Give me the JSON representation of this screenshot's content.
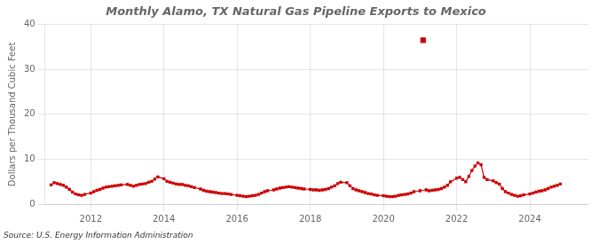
{
  "chart_data": {
    "type": "line",
    "title": "Monthly Alamo, TX Natural Gas Pipeline Exports to Mexico",
    "ylabel": "Dollars per Thousand Cubic Feet",
    "annotation": "Source: U.S. Energy Information Administration",
    "xlim": [
      2010.75,
      2025.6
    ],
    "xticks": [
      2012,
      2014,
      2016,
      2018,
      2020,
      2022,
      2024
    ],
    "ylim": [
      0,
      40
    ],
    "yticks": [
      0,
      10,
      20,
      30,
      40
    ],
    "grid": true,
    "legend": false,
    "series": [
      {
        "type": "line",
        "color": "#cc0000",
        "marker": "square",
        "x": [
          2010.917,
          2011.0,
          2011.083,
          2011.167,
          2011.25,
          2011.333,
          2011.417,
          2011.5,
          2011.583,
          2011.667,
          2011.75,
          2011.833,
          2012.0,
          2012.083,
          2012.167,
          2012.25,
          2012.333,
          2012.417,
          2012.5,
          2012.583,
          2012.667,
          2012.75,
          2012.833,
          2013.0,
          2013.083,
          2013.167,
          2013.25,
          2013.333,
          2013.417,
          2013.5,
          2013.583,
          2013.667,
          2013.75,
          2013.833,
          2014.0,
          2014.083,
          2014.167,
          2014.25,
          2014.333,
          2014.417,
          2014.5,
          2014.583,
          2014.667,
          2014.75,
          2014.833,
          2015.0,
          2015.083,
          2015.167,
          2015.25,
          2015.333,
          2015.417,
          2015.5,
          2015.583,
          2015.667,
          2015.75,
          2015.833,
          2016.0,
          2016.083,
          2016.167,
          2016.25,
          2016.333,
          2016.417,
          2016.5,
          2016.583,
          2016.667,
          2016.75,
          2016.833,
          2017.0,
          2017.083,
          2017.167,
          2017.25,
          2017.333,
          2017.417,
          2017.5,
          2017.583,
          2017.667,
          2017.75,
          2017.833,
          2018.0,
          2018.083,
          2018.167,
          2018.25,
          2018.333,
          2018.417,
          2018.5,
          2018.583,
          2018.667,
          2018.75,
          2018.833,
          2019.0,
          2019.083,
          2019.167,
          2019.25,
          2019.333,
          2019.417,
          2019.5,
          2019.583,
          2019.667,
          2019.75,
          2019.833,
          2020.0,
          2020.083,
          2020.167,
          2020.25,
          2020.333,
          2020.417,
          2020.5,
          2020.583,
          2020.667,
          2020.75,
          2020.833,
          2021.0,
          2021.167,
          2021.25,
          2021.333,
          2021.417,
          2021.5,
          2021.583,
          2021.667,
          2021.75,
          2021.833,
          2022.0,
          2022.083,
          2022.167,
          2022.25,
          2022.333,
          2022.417,
          2022.5,
          2022.583,
          2022.667,
          2022.75,
          2022.833,
          2023.0,
          2023.083,
          2023.167,
          2023.25,
          2023.333,
          2023.417,
          2023.5,
          2023.583,
          2023.667,
          2023.75,
          2023.833,
          2024.0,
          2024.083,
          2024.167,
          2024.25,
          2024.333,
          2024.417,
          2024.5,
          2024.583,
          2024.667,
          2024.75,
          2024.833
        ],
        "values": [
          4.3,
          4.8,
          4.6,
          4.4,
          4.2,
          3.8,
          3.3,
          2.7,
          2.3,
          2.1,
          2.0,
          2.2,
          2.5,
          2.8,
          3.1,
          3.3,
          3.6,
          3.8,
          3.9,
          4.0,
          4.1,
          4.2,
          4.3,
          4.4,
          4.2,
          4.0,
          4.2,
          4.4,
          4.5,
          4.6,
          4.9,
          5.1,
          5.6,
          6.1,
          5.7,
          5.1,
          4.9,
          4.7,
          4.5,
          4.4,
          4.4,
          4.2,
          4.1,
          3.9,
          3.7,
          3.4,
          3.1,
          2.9,
          2.8,
          2.7,
          2.6,
          2.5,
          2.4,
          2.4,
          2.3,
          2.2,
          2.0,
          1.9,
          1.8,
          1.7,
          1.8,
          1.9,
          2.0,
          2.2,
          2.5,
          2.8,
          3.0,
          3.2,
          3.4,
          3.6,
          3.7,
          3.8,
          3.9,
          3.8,
          3.7,
          3.6,
          3.5,
          3.4,
          3.3,
          3.2,
          3.2,
          3.1,
          3.2,
          3.3,
          3.5,
          3.8,
          4.1,
          4.6,
          4.9,
          4.8,
          4.1,
          3.5,
          3.2,
          3.0,
          2.8,
          2.6,
          2.4,
          2.3,
          2.1,
          2.0,
          1.9,
          1.8,
          1.7,
          1.7,
          1.8,
          2.0,
          2.1,
          2.2,
          2.3,
          2.5,
          2.8,
          3.0,
          3.2,
          3.0,
          3.1,
          3.2,
          3.3,
          3.5,
          3.8,
          4.2,
          5.0,
          5.8,
          6.0,
          5.5,
          5.0,
          6.2,
          7.5,
          8.5,
          9.2,
          8.8,
          6.0,
          5.5,
          5.2,
          4.8,
          4.5,
          3.5,
          2.8,
          2.5,
          2.2,
          2.0,
          1.8,
          1.9,
          2.1,
          2.3,
          2.5,
          2.7,
          2.9,
          3.0,
          3.2,
          3.5,
          3.8,
          4.0,
          4.2,
          4.5
        ]
      },
      {
        "type": "scatter",
        "color": "#cc0000",
        "marker": "square",
        "x": [
          2021.083
        ],
        "values": [
          36.5
        ]
      }
    ]
  }
}
